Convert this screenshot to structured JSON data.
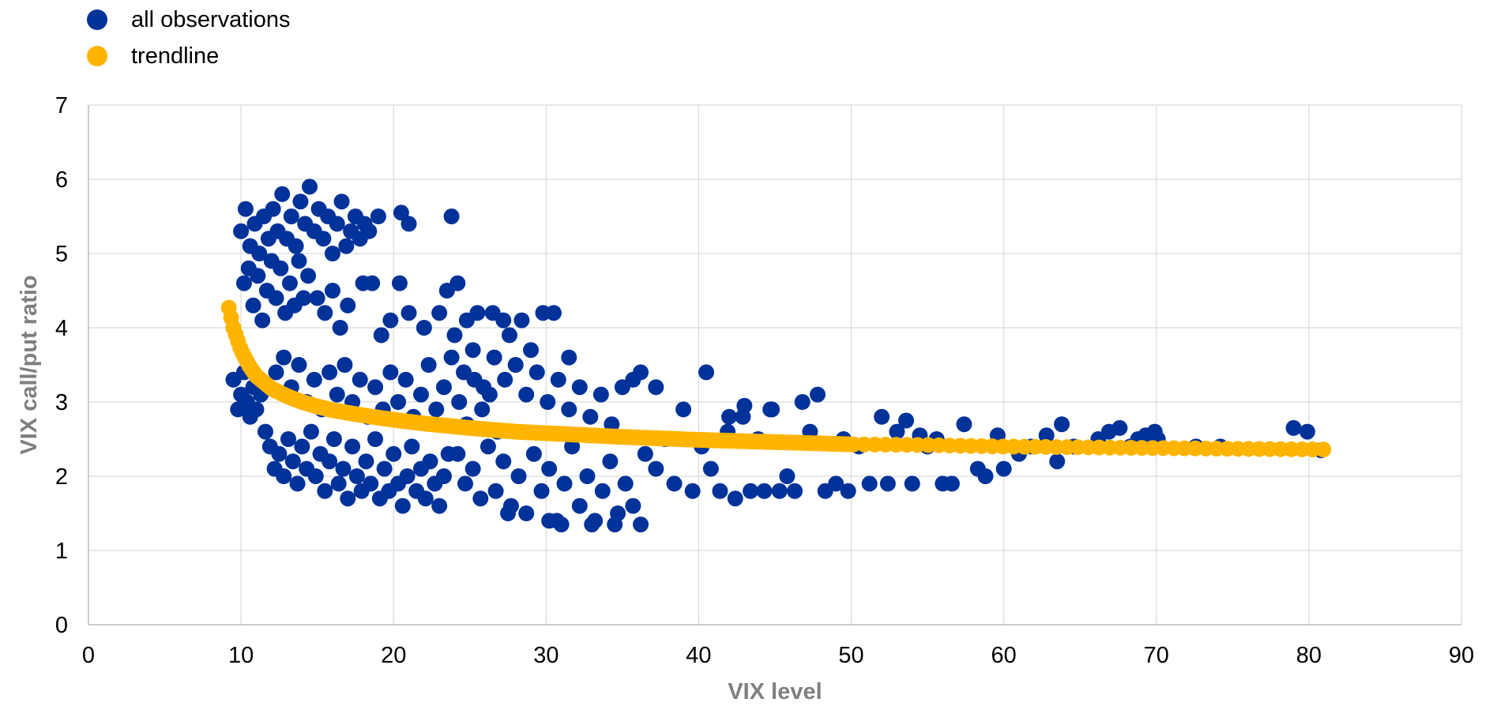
{
  "chart_data": {
    "type": "scatter",
    "xlabel": "VIX level",
    "ylabel": "VIX call/put ratio",
    "xlim": [
      0,
      90
    ],
    "ylim": [
      0,
      7
    ],
    "x_ticks": [
      0,
      10,
      20,
      30,
      40,
      50,
      60,
      70,
      80,
      90
    ],
    "y_ticks": [
      0,
      1,
      2,
      3,
      4,
      5,
      6,
      7
    ],
    "grid": true,
    "legend_position": "top-left",
    "series": [
      {
        "name": "all observations",
        "color": "#003299",
        "points": [
          [
            9.5,
            3.3
          ],
          [
            9.8,
            2.9
          ],
          [
            10.0,
            3.1
          ],
          [
            10.2,
            3.4
          ],
          [
            10.4,
            3.0
          ],
          [
            10.6,
            2.8
          ],
          [
            10.8,
            3.2
          ],
          [
            11.0,
            2.9
          ],
          [
            11.3,
            3.1
          ],
          [
            11.6,
            2.6
          ],
          [
            11.9,
            2.4
          ],
          [
            12.2,
            2.1
          ],
          [
            12.5,
            2.3
          ],
          [
            12.8,
            2.0
          ],
          [
            13.1,
            2.5
          ],
          [
            13.4,
            2.2
          ],
          [
            13.7,
            1.9
          ],
          [
            14.0,
            2.4
          ],
          [
            14.3,
            2.1
          ],
          [
            14.6,
            2.6
          ],
          [
            14.9,
            2.0
          ],
          [
            15.2,
            2.3
          ],
          [
            15.5,
            1.8
          ],
          [
            15.8,
            2.2
          ],
          [
            16.1,
            2.5
          ],
          [
            16.4,
            1.9
          ],
          [
            16.7,
            2.1
          ],
          [
            17.0,
            1.7
          ],
          [
            17.3,
            2.4
          ],
          [
            17.6,
            2.0
          ],
          [
            17.9,
            1.8
          ],
          [
            18.2,
            2.2
          ],
          [
            18.5,
            1.9
          ],
          [
            18.8,
            2.5
          ],
          [
            19.1,
            1.7
          ],
          [
            19.4,
            2.1
          ],
          [
            19.7,
            1.8
          ],
          [
            20.0,
            2.3
          ],
          [
            20.3,
            1.9
          ],
          [
            20.6,
            1.6
          ],
          [
            20.9,
            2.0
          ],
          [
            21.2,
            2.4
          ],
          [
            21.5,
            1.8
          ],
          [
            21.8,
            2.1
          ],
          [
            22.1,
            1.7
          ],
          [
            22.4,
            2.2
          ],
          [
            22.7,
            1.9
          ],
          [
            23.0,
            1.6
          ],
          [
            23.3,
            2.0
          ],
          [
            23.6,
            2.3
          ],
          [
            12.3,
            3.4
          ],
          [
            12.8,
            3.6
          ],
          [
            13.3,
            3.2
          ],
          [
            13.8,
            3.5
          ],
          [
            14.3,
            3.0
          ],
          [
            14.8,
            3.3
          ],
          [
            15.3,
            2.9
          ],
          [
            15.8,
            3.4
          ],
          [
            16.3,
            3.1
          ],
          [
            16.8,
            3.5
          ],
          [
            17.3,
            3.0
          ],
          [
            17.8,
            3.3
          ],
          [
            18.3,
            2.8
          ],
          [
            18.8,
            3.2
          ],
          [
            19.3,
            2.9
          ],
          [
            19.8,
            3.4
          ],
          [
            20.3,
            3.0
          ],
          [
            20.8,
            3.3
          ],
          [
            21.3,
            2.8
          ],
          [
            21.8,
            3.1
          ],
          [
            22.3,
            3.5
          ],
          [
            22.8,
            2.9
          ],
          [
            23.3,
            3.2
          ],
          [
            23.8,
            3.6
          ],
          [
            24.3,
            3.0
          ],
          [
            24.8,
            2.7
          ],
          [
            25.3,
            3.3
          ],
          [
            25.8,
            2.9
          ],
          [
            26.3,
            3.1
          ],
          [
            26.8,
            2.6
          ],
          [
            10.0,
            5.3
          ],
          [
            10.3,
            5.6
          ],
          [
            10.6,
            5.1
          ],
          [
            10.9,
            5.4
          ],
          [
            11.2,
            5.0
          ],
          [
            11.5,
            5.5
          ],
          [
            11.8,
            5.2
          ],
          [
            12.1,
            5.6
          ],
          [
            12.4,
            5.3
          ],
          [
            12.7,
            5.8
          ],
          [
            13.0,
            5.2
          ],
          [
            13.3,
            5.5
          ],
          [
            13.6,
            5.1
          ],
          [
            13.9,
            5.7
          ],
          [
            14.2,
            5.4
          ],
          [
            14.5,
            5.9
          ],
          [
            14.8,
            5.3
          ],
          [
            15.1,
            5.6
          ],
          [
            15.4,
            5.2
          ],
          [
            15.7,
            5.5
          ],
          [
            16.0,
            5.0
          ],
          [
            16.3,
            5.4
          ],
          [
            16.6,
            5.7
          ],
          [
            16.9,
            5.1
          ],
          [
            17.2,
            5.3
          ],
          [
            17.5,
            5.5
          ],
          [
            17.8,
            5.2
          ],
          [
            18.1,
            5.4
          ],
          [
            18.4,
            5.3
          ],
          [
            19.0,
            5.5
          ],
          [
            20.5,
            5.55
          ],
          [
            21.0,
            5.4
          ],
          [
            23.8,
            5.5
          ],
          [
            10.2,
            4.6
          ],
          [
            10.5,
            4.8
          ],
          [
            10.8,
            4.3
          ],
          [
            11.1,
            4.7
          ],
          [
            11.4,
            4.1
          ],
          [
            11.7,
            4.5
          ],
          [
            12.0,
            4.9
          ],
          [
            12.3,
            4.4
          ],
          [
            12.6,
            4.8
          ],
          [
            12.9,
            4.2
          ],
          [
            13.2,
            4.6
          ],
          [
            13.5,
            4.3
          ],
          [
            13.8,
            4.9
          ],
          [
            14.1,
            4.4
          ],
          [
            14.4,
            4.7
          ],
          [
            15.0,
            4.4
          ],
          [
            15.5,
            4.2
          ],
          [
            16.0,
            4.5
          ],
          [
            16.5,
            4.0
          ],
          [
            17.0,
            4.3
          ],
          [
            18.0,
            4.6
          ],
          [
            18.6,
            4.6
          ],
          [
            19.2,
            3.9
          ],
          [
            19.8,
            4.1
          ],
          [
            20.4,
            4.6
          ],
          [
            21.0,
            4.2
          ],
          [
            22.0,
            4.0
          ],
          [
            23.0,
            4.2
          ],
          [
            23.5,
            4.5
          ],
          [
            24.2,
            4.6
          ],
          [
            24.8,
            4.1
          ],
          [
            25.5,
            4.2
          ],
          [
            26.5,
            4.2
          ],
          [
            27.2,
            4.1
          ],
          [
            27.6,
            3.9
          ],
          [
            28.4,
            4.1
          ],
          [
            29.0,
            3.7
          ],
          [
            29.8,
            4.2
          ],
          [
            30.5,
            4.2
          ],
          [
            31.5,
            3.6
          ],
          [
            24.0,
            3.9
          ],
          [
            24.6,
            3.4
          ],
          [
            25.2,
            3.7
          ],
          [
            25.9,
            3.2
          ],
          [
            26.6,
            3.6
          ],
          [
            27.3,
            3.3
          ],
          [
            28.0,
            3.5
          ],
          [
            28.7,
            3.1
          ],
          [
            29.4,
            3.4
          ],
          [
            30.1,
            3.0
          ],
          [
            30.8,
            3.3
          ],
          [
            31.5,
            2.9
          ],
          [
            32.2,
            3.2
          ],
          [
            32.9,
            2.8
          ],
          [
            33.6,
            3.1
          ],
          [
            34.3,
            2.7
          ],
          [
            35.0,
            3.2
          ],
          [
            35.7,
            3.3
          ],
          [
            36.2,
            3.4
          ],
          [
            37.2,
            3.2
          ],
          [
            24.2,
            2.3
          ],
          [
            24.7,
            1.9
          ],
          [
            25.2,
            2.1
          ],
          [
            25.7,
            1.7
          ],
          [
            26.2,
            2.4
          ],
          [
            26.7,
            1.8
          ],
          [
            27.2,
            2.2
          ],
          [
            27.7,
            1.6
          ],
          [
            28.2,
            2.0
          ],
          [
            28.7,
            1.5
          ],
          [
            29.2,
            2.3
          ],
          [
            29.7,
            1.8
          ],
          [
            30.2,
            2.1
          ],
          [
            30.7,
            1.4
          ],
          [
            31.2,
            1.9
          ],
          [
            31.7,
            2.4
          ],
          [
            32.2,
            1.6
          ],
          [
            32.7,
            2.0
          ],
          [
            33.2,
            1.4
          ],
          [
            33.7,
            1.8
          ],
          [
            34.2,
            2.2
          ],
          [
            34.7,
            1.5
          ],
          [
            35.2,
            1.9
          ],
          [
            35.7,
            1.6
          ],
          [
            36.2,
            1.35
          ],
          [
            33.0,
            1.35
          ],
          [
            31.0,
            1.35
          ],
          [
            30.2,
            1.4
          ],
          [
            34.5,
            1.35
          ],
          [
            27.5,
            1.5
          ],
          [
            36.5,
            2.3
          ],
          [
            37.2,
            2.1
          ],
          [
            37.8,
            2.5
          ],
          [
            38.4,
            1.9
          ],
          [
            39.0,
            2.9
          ],
          [
            39.6,
            1.8
          ],
          [
            40.2,
            2.4
          ],
          [
            40.8,
            2.1
          ],
          [
            41.4,
            1.8
          ],
          [
            41.9,
            2.6
          ],
          [
            42.4,
            1.7
          ],
          [
            42.9,
            2.8
          ],
          [
            43.4,
            1.8
          ],
          [
            43.9,
            2.5
          ],
          [
            44.3,
            1.8
          ],
          [
            44.8,
            2.9
          ],
          [
            45.3,
            1.8
          ],
          [
            45.8,
            2.0
          ],
          [
            46.3,
            1.8
          ],
          [
            46.8,
            3.0
          ],
          [
            47.3,
            2.6
          ],
          [
            47.8,
            3.1
          ],
          [
            48.3,
            1.8
          ],
          [
            49.0,
            1.9
          ],
          [
            49.5,
            2.5
          ],
          [
            49.8,
            1.8
          ],
          [
            40.5,
            3.4
          ],
          [
            42.0,
            2.8
          ],
          [
            43.0,
            2.95
          ],
          [
            44.7,
            2.9
          ],
          [
            50.5,
            2.4
          ],
          [
            51.2,
            1.9
          ],
          [
            52.0,
            2.8
          ],
          [
            52.4,
            1.9
          ],
          [
            53.0,
            2.6
          ],
          [
            53.6,
            2.75
          ],
          [
            54.0,
            1.9
          ],
          [
            54.5,
            2.55
          ],
          [
            55.0,
            2.4
          ],
          [
            55.6,
            2.5
          ],
          [
            56.0,
            1.9
          ],
          [
            56.6,
            1.9
          ],
          [
            57.4,
            2.7
          ],
          [
            58.3,
            2.1
          ],
          [
            58.8,
            2.0
          ],
          [
            59.6,
            2.55
          ],
          [
            60.0,
            2.1
          ],
          [
            61.0,
            2.3
          ],
          [
            61.8,
            2.4
          ],
          [
            62.8,
            2.55
          ],
          [
            63.5,
            2.2
          ],
          [
            63.8,
            2.7
          ],
          [
            64.6,
            2.4
          ],
          [
            66.2,
            2.5
          ],
          [
            66.9,
            2.6
          ],
          [
            67.6,
            2.65
          ],
          [
            68.3,
            2.4
          ],
          [
            68.8,
            2.5
          ],
          [
            69.3,
            2.55
          ],
          [
            69.9,
            2.6
          ],
          [
            70.1,
            2.5
          ],
          [
            72.6,
            2.4
          ],
          [
            74.2,
            2.4
          ],
          [
            79.0,
            2.65
          ],
          [
            79.9,
            2.6
          ],
          [
            80.8,
            2.35
          ]
        ]
      },
      {
        "name": "trendline",
        "color": "#ffb400",
        "x_start": 9.2,
        "points": [
          [
            9.2,
            4.27
          ],
          [
            9.5,
            4.0
          ],
          [
            10.0,
            3.7
          ],
          [
            10.5,
            3.5
          ],
          [
            11.0,
            3.35
          ],
          [
            12.0,
            3.18
          ],
          [
            13.0,
            3.08
          ],
          [
            14.0,
            3.0
          ],
          [
            15.0,
            2.94
          ],
          [
            16.0,
            2.89
          ],
          [
            18.0,
            2.82
          ],
          [
            20.0,
            2.76
          ],
          [
            22.0,
            2.71
          ],
          [
            25.0,
            2.65
          ],
          [
            28.0,
            2.6
          ],
          [
            30.0,
            2.58
          ],
          [
            35.0,
            2.53
          ],
          [
            40.0,
            2.49
          ],
          [
            45.0,
            2.46
          ],
          [
            50.0,
            2.43
          ],
          [
            55.0,
            2.42
          ],
          [
            60.0,
            2.4
          ],
          [
            65.0,
            2.39
          ],
          [
            70.0,
            2.38
          ],
          [
            75.0,
            2.37
          ],
          [
            81.0,
            2.36
          ]
        ]
      }
    ]
  }
}
